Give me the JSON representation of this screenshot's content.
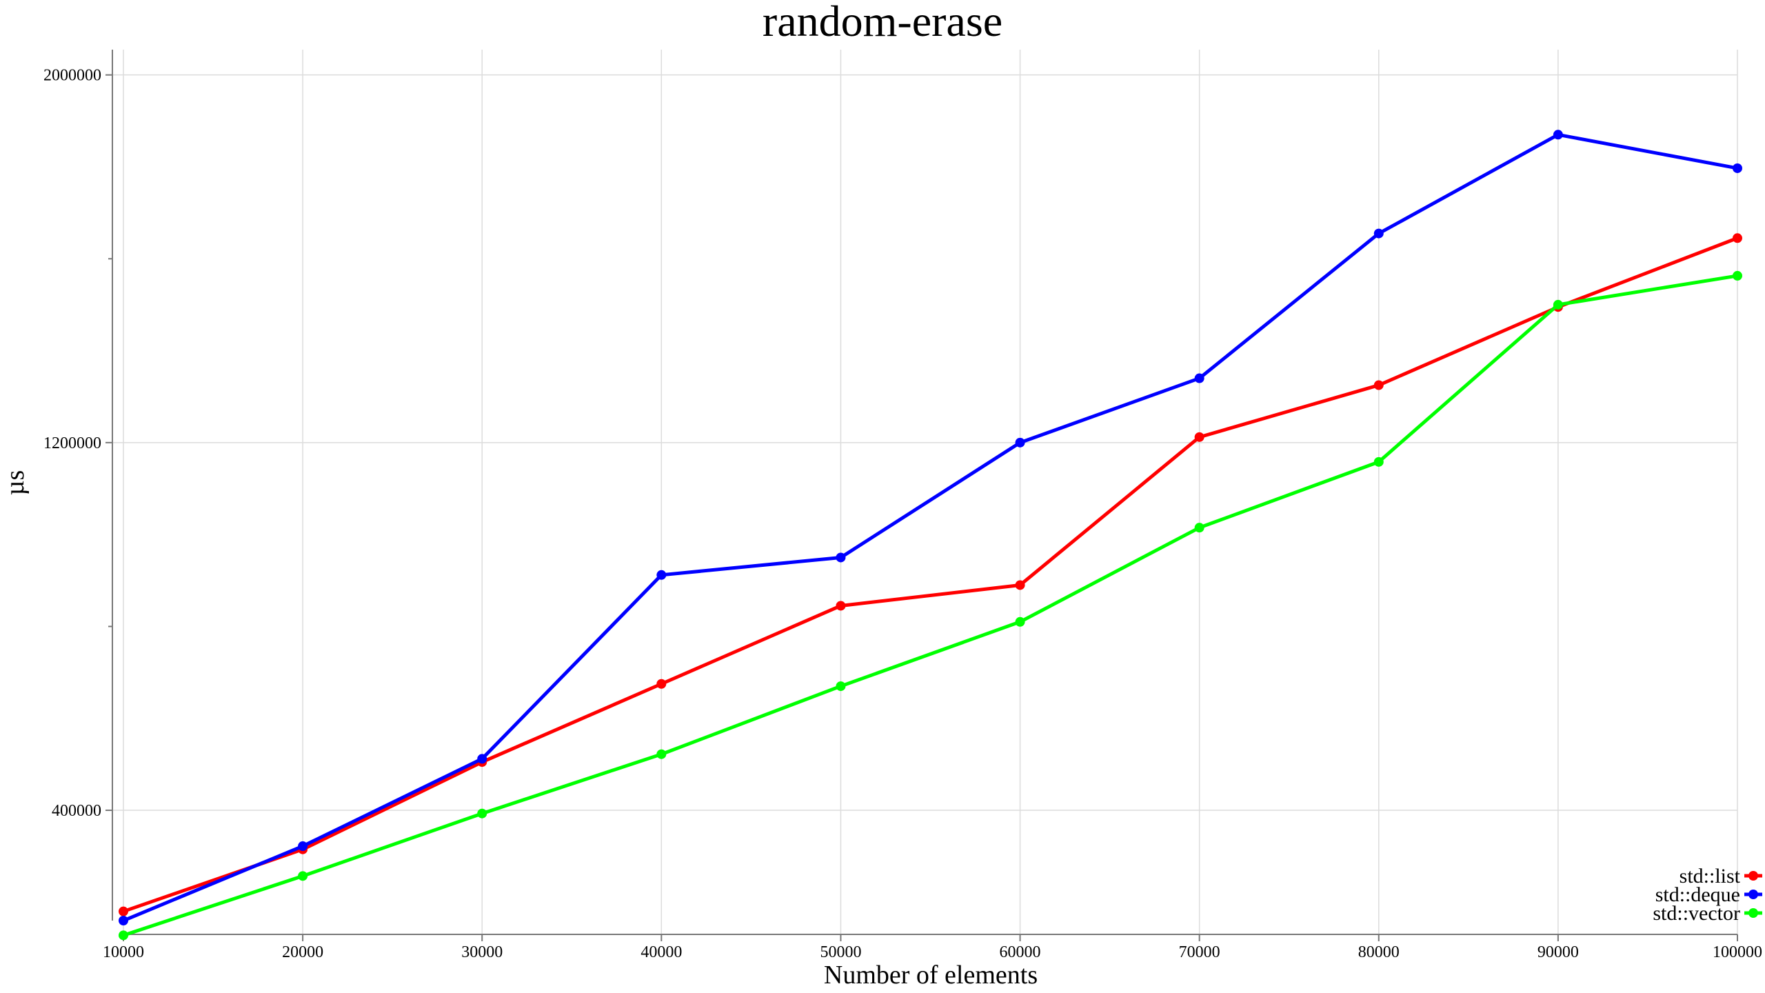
{
  "chart_data": {
    "type": "line",
    "title": "random-erase",
    "xlabel": "Number of elements",
    "ylabel": "µs",
    "x": [
      10000,
      20000,
      30000,
      40000,
      50000,
      60000,
      70000,
      80000,
      90000,
      100000
    ],
    "x_ticks": [
      "10000",
      "20000",
      "30000",
      "40000",
      "50000",
      "60000",
      "70000",
      "80000",
      "90000",
      "100000"
    ],
    "y_ticks": [
      "400000",
      "1200000",
      "2000000"
    ],
    "y_tick_values": [
      400000,
      1200000,
      2000000
    ],
    "y_minor_tick_values": [
      800000,
      1600000
    ],
    "xlim": [
      10000,
      100000
    ],
    "ylim": [
      130000,
      2055000
    ],
    "grid": true,
    "legend_position": "bottom-right",
    "series": [
      {
        "name": "std::list",
        "color": "#ff0000",
        "values": [
          180000,
          315000,
          505000,
          675000,
          845000,
          890000,
          1212000,
          1325000,
          1495000,
          1645000
        ]
      },
      {
        "name": "std::deque",
        "color": "#0000ff",
        "values": [
          160000,
          322000,
          512000,
          912000,
          950000,
          1200000,
          1340000,
          1655000,
          1870000,
          1797000
        ]
      },
      {
        "name": "std::vector",
        "color": "#00ff00",
        "values": [
          128000,
          257000,
          393000,
          522000,
          670000,
          810000,
          1015000,
          1158000,
          1500000,
          1563000
        ]
      }
    ]
  }
}
